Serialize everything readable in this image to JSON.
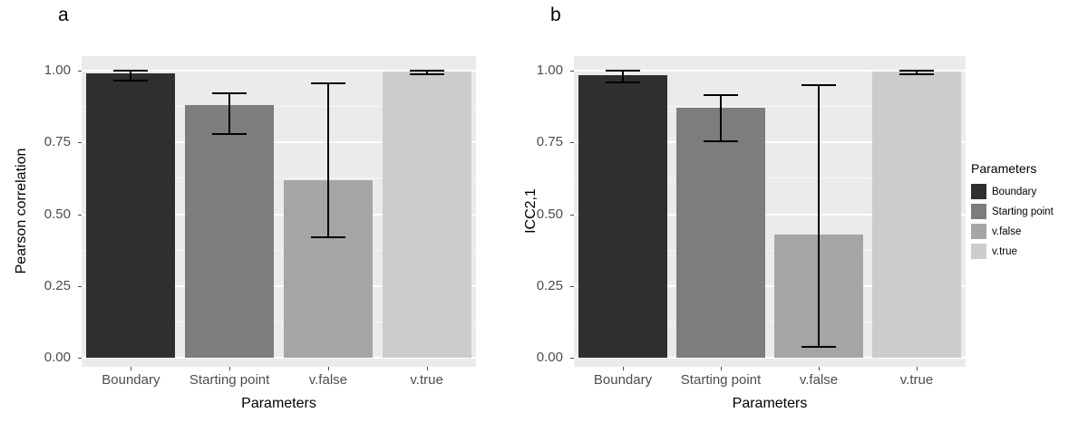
{
  "chart_data": [
    {
      "type": "bar",
      "panel_label": "a",
      "categories": [
        "Boundary",
        "Starting point",
        "v.false",
        "v.true"
      ],
      "values": [
        0.99,
        0.88,
        0.62,
        0.995
      ],
      "error_low": [
        0.965,
        0.78,
        0.42,
        0.988
      ],
      "error_high": [
        1.0,
        0.92,
        0.955,
        1.0
      ],
      "xlabel": "Parameters",
      "ylabel": "Pearson correlation",
      "ylim": [
        0,
        1.0
      ],
      "yticks": [
        0,
        0.25,
        0.5,
        0.75,
        1.0
      ],
      "ytick_labels": [
        "0.00",
        "0.25",
        "0.50",
        "0.75",
        "1.00"
      ],
      "grid": true,
      "legend_position": "right"
    },
    {
      "type": "bar",
      "panel_label": "b",
      "categories": [
        "Boundary",
        "Starting point",
        "v.false",
        "v.true"
      ],
      "values": [
        0.985,
        0.87,
        0.43,
        0.995
      ],
      "error_low": [
        0.958,
        0.755,
        0.04,
        0.988
      ],
      "error_high": [
        1.0,
        0.915,
        0.95,
        1.0
      ],
      "xlabel": "Parameters",
      "ylabel": "ICC2,1",
      "ylim": [
        0,
        1.0
      ],
      "yticks": [
        0,
        0.25,
        0.5,
        0.75,
        1.0
      ],
      "ytick_labels": [
        "0.00",
        "0.25",
        "0.50",
        "0.75",
        "1.00"
      ],
      "grid": true,
      "legend_position": "right"
    }
  ],
  "legend": {
    "title": "Parameters",
    "entries": [
      {
        "label": "Boundary",
        "color": "#2f2f2f"
      },
      {
        "label": "Starting point",
        "color": "#7d7d7d"
      },
      {
        "label": "v.false",
        "color": "#a5a5a5"
      },
      {
        "label": "v.true",
        "color": "#cccccc"
      }
    ]
  },
  "style": {
    "panel_background": "#ebebeb",
    "grid_color": "#ffffff",
    "axis_text_color": "#4d4d4d",
    "axis_title_color": "#000000",
    "error_bar_color": "#000000",
    "bar_colors": [
      "#2f2f2f",
      "#7d7d7d",
      "#a5a5a5",
      "#cccccc"
    ]
  }
}
